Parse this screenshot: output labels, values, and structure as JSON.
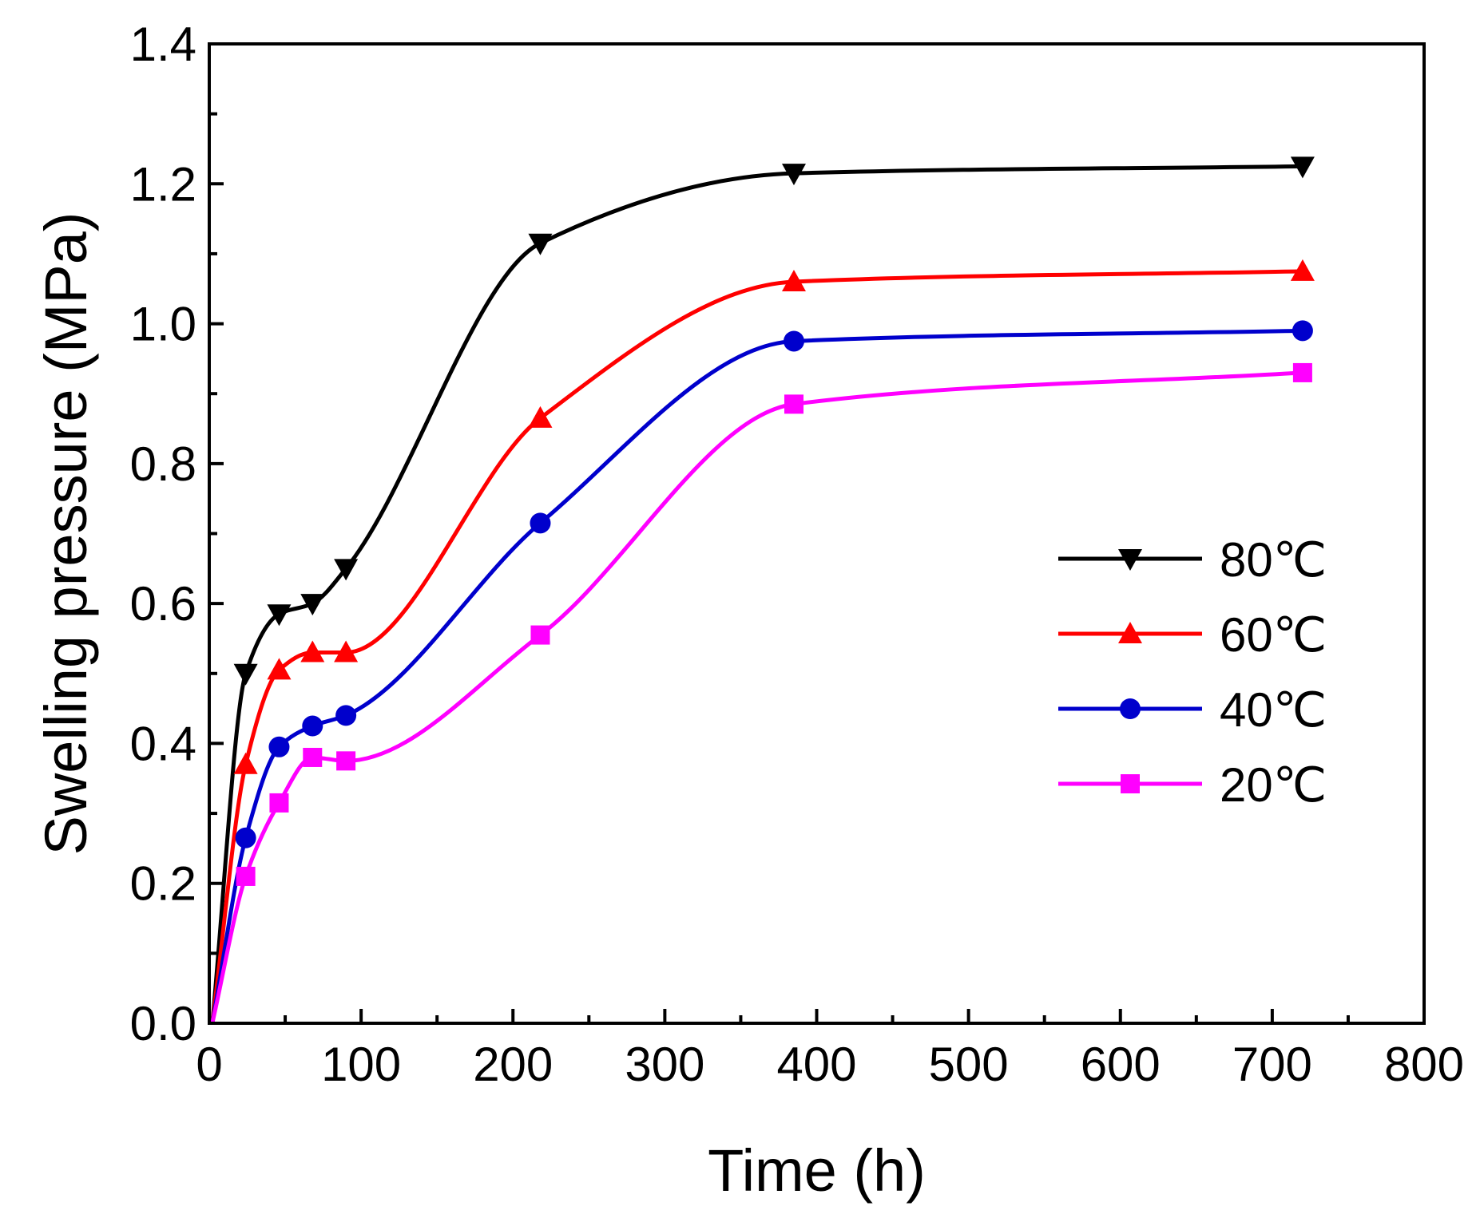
{
  "chart_data": {
    "type": "line",
    "title": "",
    "xlabel": "Time (h)",
    "ylabel": "Swelling pressure (MPa)",
    "xlim": [
      0,
      800
    ],
    "ylim": [
      0,
      1.4
    ],
    "xticks": [
      0,
      100,
      200,
      300,
      400,
      500,
      600,
      700,
      800
    ],
    "yticks": [
      0.0,
      0.2,
      0.4,
      0.6,
      0.8,
      1.0,
      1.2,
      1.4
    ],
    "xtick_labels": [
      "0",
      "100",
      "200",
      "300",
      "400",
      "500",
      "600",
      "700",
      "800"
    ],
    "ytick_labels": [
      "0.0",
      "0.2",
      "0.4",
      "0.6",
      "0.8",
      "1.0",
      "1.2",
      "1.4"
    ],
    "grid": false,
    "legend_position": "center-right",
    "series": [
      {
        "name": "80℃",
        "label": "80℃",
        "color": "#000000",
        "marker": "triangle-down",
        "x": [
          2,
          24,
          46,
          68,
          90,
          218,
          385,
          720
        ],
        "y": [
          0.0,
          0.5,
          0.585,
          0.6,
          0.65,
          1.115,
          1.215,
          1.225
        ]
      },
      {
        "name": "60℃",
        "label": "60℃",
        "color": "#ff0000",
        "marker": "triangle-up",
        "x": [
          2,
          24,
          46,
          68,
          90,
          218,
          385,
          720
        ],
        "y": [
          0.0,
          0.37,
          0.505,
          0.53,
          0.53,
          0.865,
          1.06,
          1.075
        ]
      },
      {
        "name": "40℃",
        "label": "40℃",
        "color": "#0000cc",
        "marker": "circle",
        "x": [
          2,
          24,
          46,
          68,
          90,
          218,
          385,
          720
        ],
        "y": [
          0.0,
          0.265,
          0.395,
          0.425,
          0.44,
          0.715,
          0.975,
          0.99
        ]
      },
      {
        "name": "20℃",
        "label": "20℃",
        "color": "#ff00ff",
        "marker": "square",
        "x": [
          2,
          24,
          46,
          68,
          90,
          218,
          385,
          720
        ],
        "y": [
          0.0,
          0.21,
          0.315,
          0.38,
          0.375,
          0.555,
          0.885,
          0.93
        ]
      }
    ]
  }
}
